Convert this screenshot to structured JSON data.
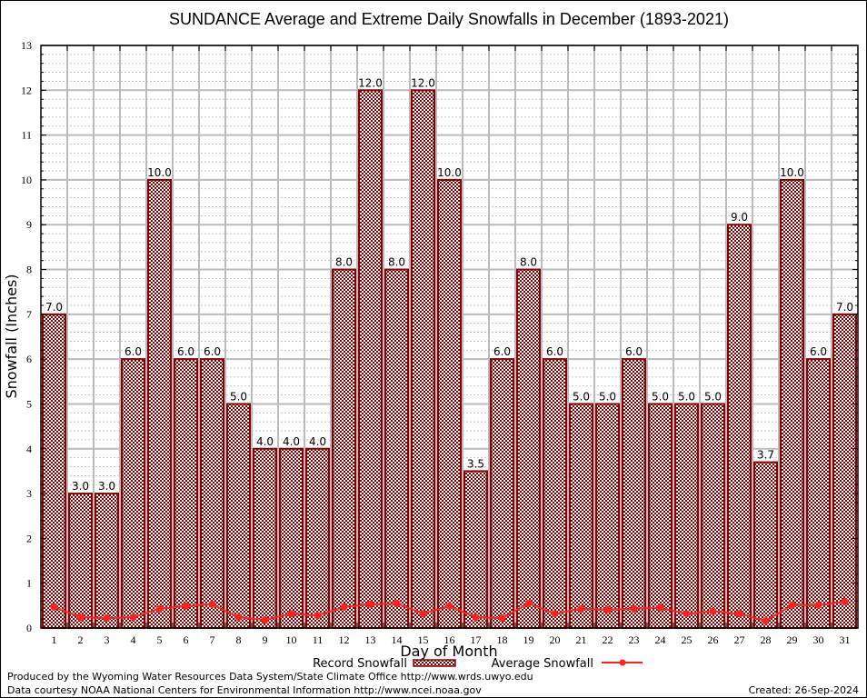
{
  "chart_data": {
    "type": "bar",
    "title": "SUNDANCE Average and Extreme Daily Snowfalls in December (1893-2021)",
    "xlabel": "Day of Month",
    "ylabel": "Snowfall (Inches)",
    "ylim": [
      0,
      13
    ],
    "yticks": [
      "0",
      "1",
      "2",
      "3",
      "4",
      "5",
      "6",
      "7",
      "8",
      "9",
      "10",
      "11",
      "12",
      "13"
    ],
    "grid": true,
    "legend_position": "bottom-center",
    "categories": [
      "1",
      "2",
      "3",
      "4",
      "5",
      "6",
      "7",
      "8",
      "9",
      "10",
      "11",
      "12",
      "13",
      "14",
      "15",
      "16",
      "17",
      "18",
      "19",
      "20",
      "21",
      "22",
      "23",
      "24",
      "25",
      "26",
      "27",
      "28",
      "29",
      "30",
      "31"
    ],
    "series": [
      {
        "name": "Record Snowfall",
        "kind": "bar",
        "color": "#8b0000",
        "values": [
          7.0,
          3.0,
          3.0,
          6.0,
          10.0,
          6.0,
          6.0,
          5.0,
          4.0,
          4.0,
          4.0,
          8.0,
          12.0,
          8.0,
          12.0,
          10.0,
          3.5,
          6.0,
          8.0,
          6.0,
          5.0,
          5.0,
          6.0,
          5.0,
          5.0,
          5.0,
          9.0,
          3.7,
          10.0,
          6.0,
          7.0
        ],
        "labels": [
          "7.0",
          "3.0",
          "3.0",
          "6.0",
          "10.0",
          "6.0",
          "6.0",
          "5.0",
          "4.0",
          "4.0",
          "4.0",
          "8.0",
          "12.0",
          "8.0",
          "12.0",
          "10.0",
          "3.5",
          "6.0",
          "8.0",
          "6.0",
          "5.0",
          "5.0",
          "6.0",
          "5.0",
          "5.0",
          "5.0",
          "9.0",
          "3.7",
          "10.0",
          "6.0",
          "7.0"
        ]
      },
      {
        "name": "Average Snowfall",
        "kind": "line",
        "color": "#ff2020",
        "values": [
          0.47,
          0.24,
          0.22,
          0.24,
          0.43,
          0.49,
          0.53,
          0.24,
          0.18,
          0.32,
          0.28,
          0.47,
          0.53,
          0.55,
          0.32,
          0.49,
          0.24,
          0.22,
          0.55,
          0.32,
          0.43,
          0.41,
          0.43,
          0.45,
          0.32,
          0.37,
          0.32,
          0.16,
          0.51,
          0.51,
          0.59
        ]
      }
    ]
  },
  "footer": {
    "produced_by": "Produced by the Wyoming Water Resources Data System/State Climate Office http://www.wrds.uwyo.edu",
    "data_courtesy": "Data courtesy NOAA National Centers for Environmental Information http://www.ncei.noaa.gov",
    "created": "Created: 26-Sep-2024"
  }
}
